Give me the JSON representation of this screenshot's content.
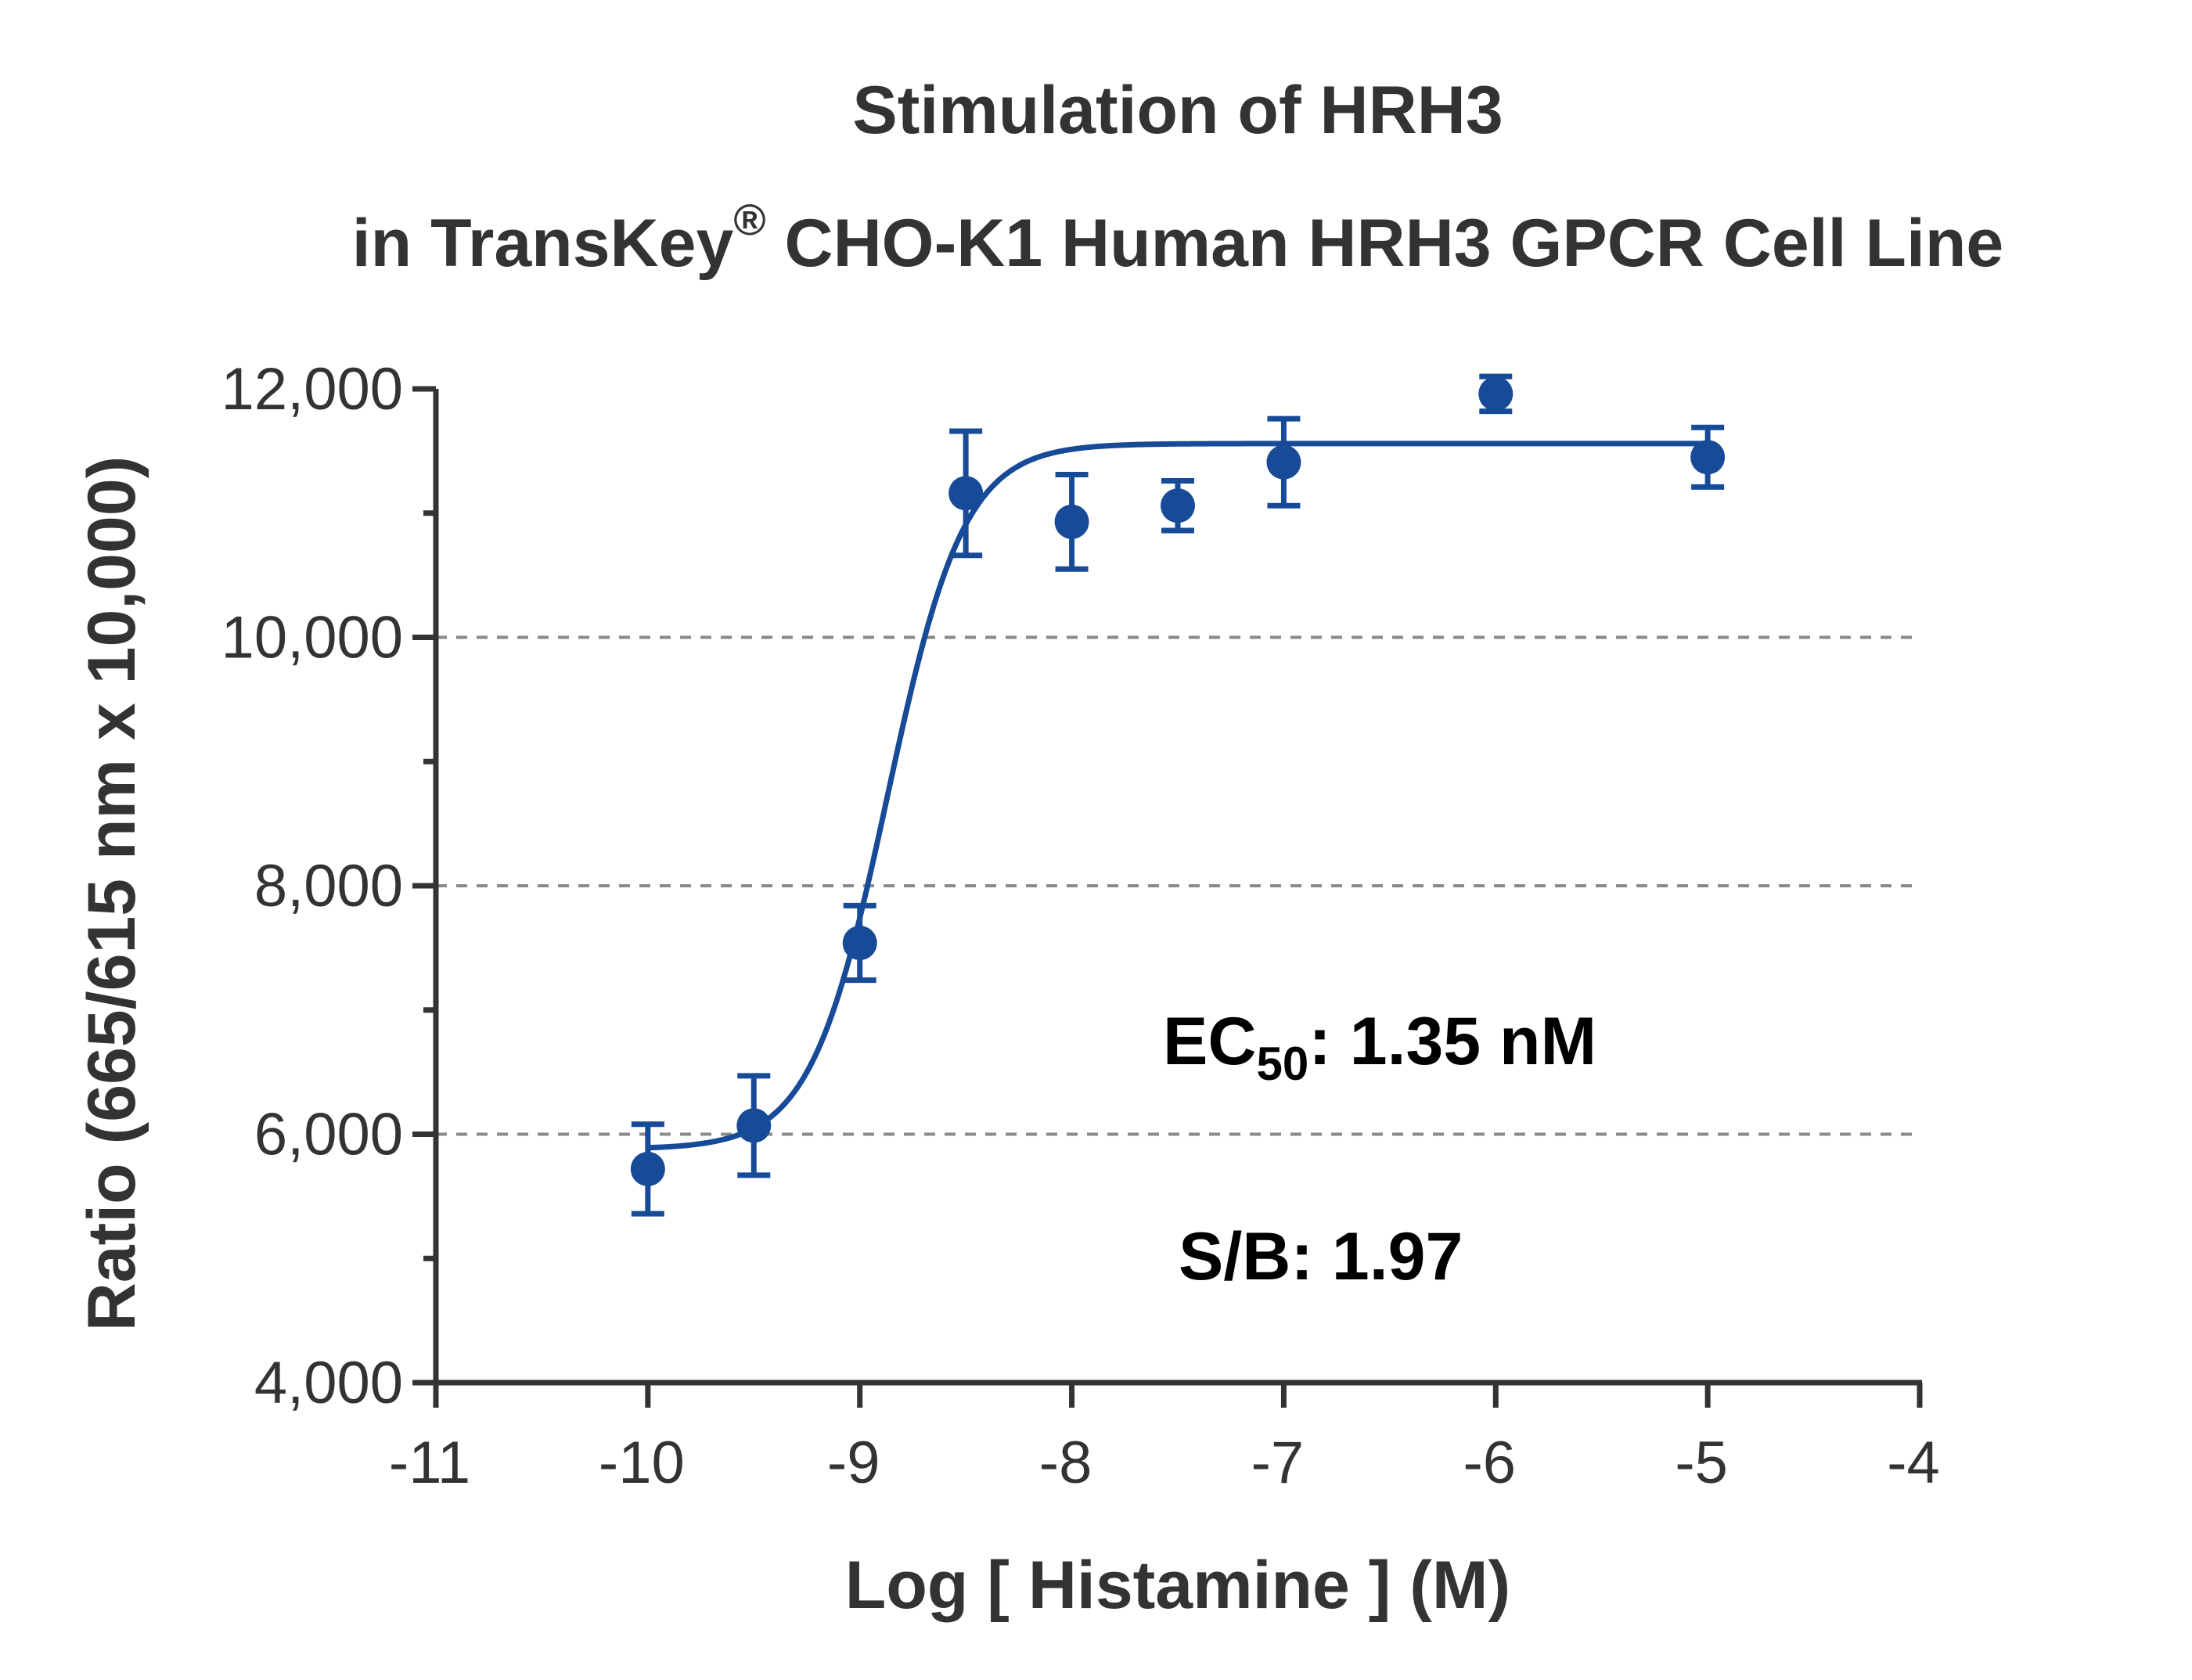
{
  "chart_data": {
    "type": "scatter",
    "title": "Stimulation of  HRH3",
    "subtitle_prefix": "in TransKey",
    "subtitle_superscript": "®",
    "subtitle_suffix": " CHO-K1 Human HRH3 GPCR Cell Line",
    "xlabel": "Log [ Histamine ]  (M)",
    "ylabel": "Ratio (665/615 nm x 10,000)",
    "xlim": [
      -11,
      -4
    ],
    "ylim": [
      4000,
      12000
    ],
    "x_ticks": [
      -11,
      -10,
      -9,
      -8,
      -7,
      -6,
      -5,
      -4
    ],
    "x_tick_labels": [
      "-11",
      "-10",
      "-9",
      "-8",
      "-7",
      "-6",
      "-5",
      "-4"
    ],
    "y_ticks": [
      4000,
      6000,
      8000,
      10000,
      12000
    ],
    "y_tick_labels": [
      "4,000",
      "6,000",
      "8,000",
      "10,000",
      "12,000"
    ],
    "y_minor_ticks": [
      5000,
      7000,
      9000,
      11000
    ],
    "gridlines_y": [
      6000,
      8000,
      10000
    ],
    "grid": "horizontal dashed",
    "color": "#174a97",
    "series": [
      {
        "x": [
          -10,
          -9.5,
          -9,
          -8.5,
          -8,
          -7.5,
          -7,
          -6,
          -5
        ],
        "y": [
          5720,
          6070,
          7540,
          11160,
          10930,
          11060,
          11410,
          11960,
          11450
        ],
        "error": [
          360,
          400,
          300,
          500,
          380,
          200,
          350,
          140,
          240
        ]
      }
    ],
    "fit": {
      "model": "four-parameter logistic",
      "bottom": 5880,
      "top": 11560,
      "logEC50": -8.87,
      "hill_slope": 2.4
    },
    "annotations": {
      "ec50_prefix": "EC",
      "ec50_subscript": "50",
      "ec50_suffix": ": 1.35 nM",
      "sb": "S/B: 1.97"
    }
  }
}
